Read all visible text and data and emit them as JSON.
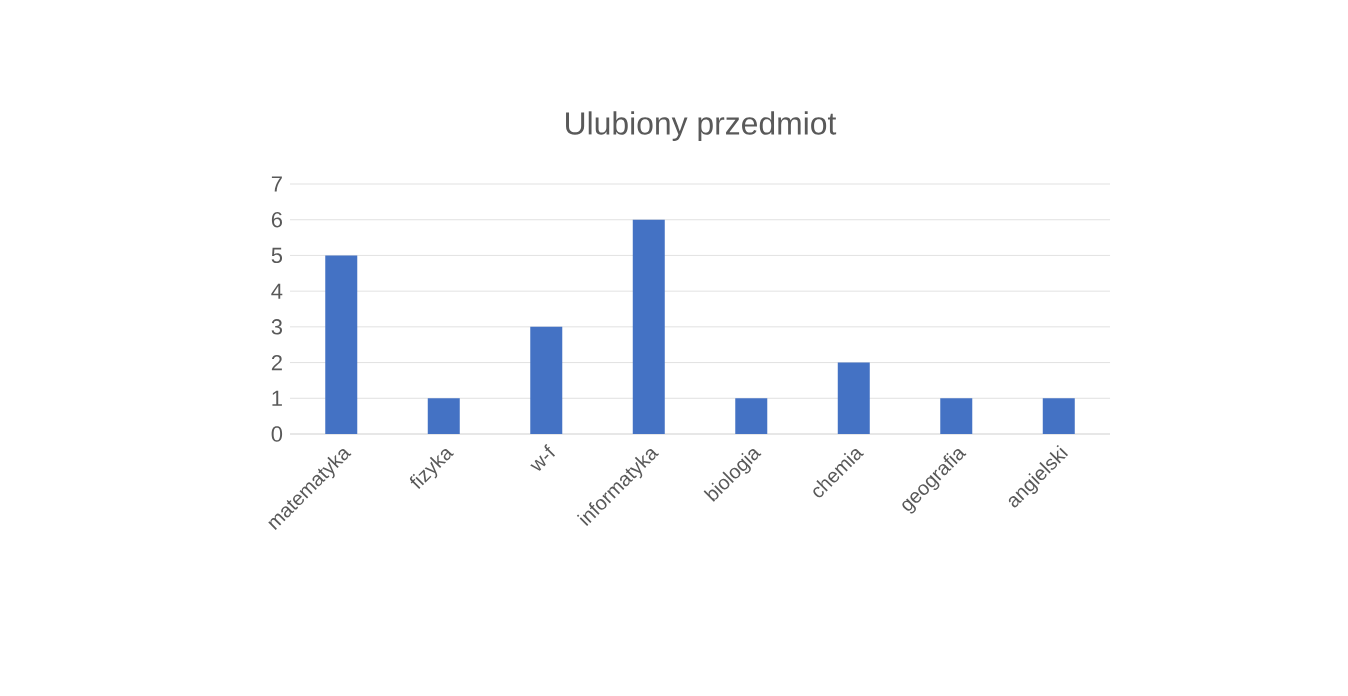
{
  "chart_data": {
    "type": "bar",
    "title": "Ulubiony przedmiot",
    "categories": [
      "matematyka",
      "fizyka",
      "w-f",
      "informatyka",
      "biologia",
      "chemia",
      "geografia",
      "angielski"
    ],
    "values": [
      5,
      1,
      3,
      6,
      1,
      2,
      1,
      1
    ],
    "color": "#4472c4",
    "ylim": [
      0,
      7
    ],
    "yticks": [
      0,
      1,
      2,
      3,
      4,
      5,
      6,
      7
    ],
    "grid": "y"
  }
}
